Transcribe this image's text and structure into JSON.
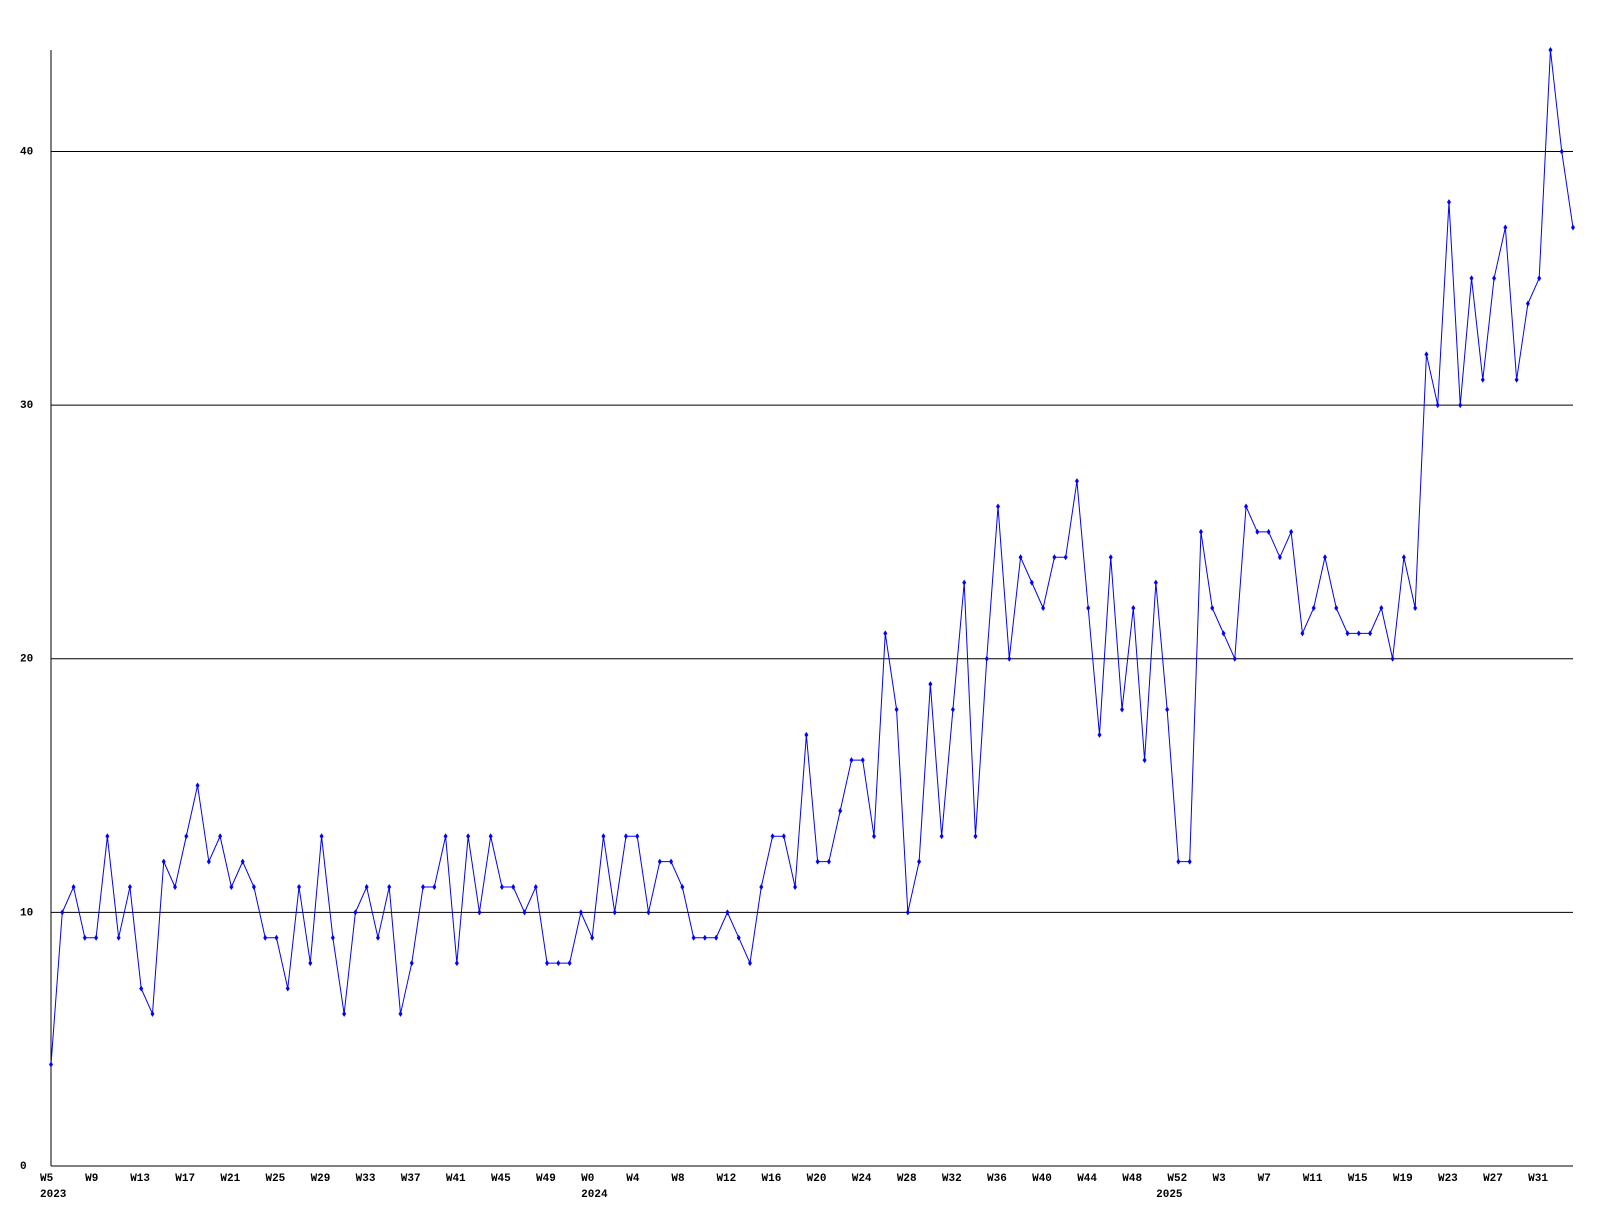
{
  "chart_data": {
    "type": "line",
    "color": "#0000ff",
    "categories": [
      "W5",
      null,
      null,
      null,
      "W9",
      null,
      null,
      null,
      "W13",
      null,
      null,
      null,
      "W17",
      null,
      null,
      null,
      "W21",
      null,
      null,
      null,
      "W25",
      null,
      null,
      null,
      "W29",
      null,
      null,
      null,
      "W33",
      null,
      null,
      null,
      "W37",
      null,
      null,
      null,
      "W41",
      null,
      null,
      null,
      "W45",
      null,
      null,
      null,
      "W49",
      null,
      null,
      null,
      "W0",
      null,
      null,
      null,
      "W4",
      null,
      null,
      null,
      "W8",
      null,
      null,
      null,
      "W12",
      null,
      null,
      null,
      "W16",
      null,
      null,
      null,
      "W20",
      null,
      null,
      null,
      "W24",
      null,
      null,
      null,
      "W28",
      null,
      null,
      null,
      "W32",
      null,
      null,
      null,
      "W36",
      null,
      null,
      null,
      "W40",
      null,
      null,
      null,
      "W44",
      null,
      null,
      null,
      "W48",
      null,
      null,
      null,
      "W52",
      null,
      null,
      null,
      "W3",
      null,
      null,
      null,
      "W7",
      null,
      null,
      null,
      "W11",
      null,
      null,
      null,
      "W15",
      null,
      null,
      null,
      "W19",
      null,
      null,
      null,
      "W23",
      null,
      null,
      null,
      "W27",
      null,
      null,
      null,
      "W31",
      null,
      null,
      null
    ],
    "year_labels": [
      "2023",
      null,
      null,
      null,
      null,
      null,
      null,
      null,
      null,
      null,
      null,
      null,
      null,
      null,
      null,
      null,
      null,
      null,
      null,
      null,
      null,
      null,
      null,
      null,
      null,
      null,
      null,
      null,
      null,
      null,
      null,
      null,
      null,
      null,
      null,
      null,
      null,
      null,
      null,
      null,
      null,
      null,
      null,
      null,
      null,
      null,
      null,
      null,
      "2024",
      null,
      null,
      null,
      null,
      null,
      null,
      null,
      null,
      null,
      null,
      null,
      null,
      null,
      null,
      null,
      null,
      null,
      null,
      null,
      null,
      null,
      null,
      null,
      null,
      null,
      null,
      null,
      null,
      null,
      null,
      null,
      null,
      null,
      null,
      null,
      null,
      null,
      null,
      null,
      null,
      null,
      null,
      null,
      null,
      null,
      null,
      null,
      null,
      null,
      null,
      "2025",
      null,
      null,
      null,
      null,
      null,
      null,
      null,
      null,
      null,
      null,
      null,
      null,
      null,
      null,
      null,
      null,
      null,
      null,
      null,
      null,
      null,
      null,
      null,
      null,
      null,
      null,
      null,
      null,
      null,
      null,
      null,
      null,
      null,
      null
    ],
    "values": [
      4,
      10,
      11,
      9,
      9,
      13,
      9,
      11,
      7,
      6,
      12,
      11,
      13,
      15,
      12,
      13,
      11,
      12,
      11,
      9,
      9,
      7,
      11,
      8,
      13,
      9,
      6,
      10,
      11,
      9,
      11,
      6,
      8,
      11,
      11,
      13,
      8,
      13,
      10,
      13,
      11,
      11,
      10,
      11,
      8,
      8,
      8,
      10,
      9,
      13,
      10,
      13,
      13,
      10,
      12,
      12,
      11,
      9,
      9,
      9,
      10,
      9,
      8,
      11,
      13,
      13,
      11,
      17,
      12,
      12,
      14,
      16,
      16,
      13,
      21,
      18,
      10,
      12,
      19,
      13,
      18,
      23,
      13,
      20,
      26,
      20,
      24,
      23,
      22,
      24,
      24,
      27,
      22,
      17,
      24,
      18,
      22,
      16,
      23,
      18,
      12,
      12,
      25,
      22,
      21,
      20,
      26,
      25,
      25,
      24,
      25,
      21,
      22,
      24,
      22,
      21,
      21,
      21,
      22,
      20,
      24,
      22,
      32,
      30,
      38,
      30,
      35,
      31,
      35,
      37,
      31,
      34,
      35,
      44,
      40,
      37
    ],
    "ylim": [
      0,
      44
    ],
    "yticks": [
      0,
      10,
      20,
      30,
      40
    ],
    "grid": true
  }
}
